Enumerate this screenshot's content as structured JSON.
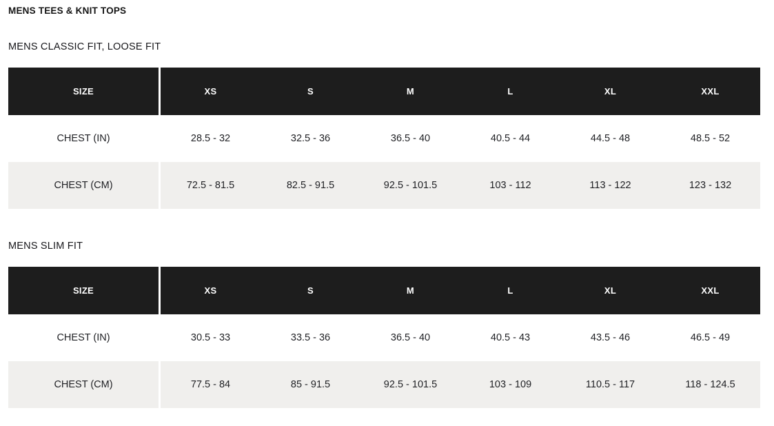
{
  "page": {
    "title": "MENS TEES & KNIT TOPS"
  },
  "colors": {
    "header_bg": "#1d1d1d",
    "header_text": "#ffffff",
    "row_alt_bg": "#f0efed",
    "body_text": "#1e1f23"
  },
  "tables": [
    {
      "subtitle": "MENS CLASSIC FIT, LOOSE FIT",
      "columns": [
        "SIZE",
        "XS",
        "S",
        "M",
        "L",
        "XL",
        "XXL"
      ],
      "rows": [
        {
          "label": "CHEST (IN)",
          "values": [
            "28.5 - 32",
            "32.5 - 36",
            "36.5 - 40",
            "40.5 - 44",
            "44.5 - 48",
            "48.5 - 52"
          ]
        },
        {
          "label": "CHEST (CM)",
          "values": [
            "72.5 - 81.5",
            "82.5 - 91.5",
            "92.5 - 101.5",
            "103 - 112",
            "113 - 122",
            "123 - 132"
          ]
        }
      ]
    },
    {
      "subtitle": "MENS SLIM FIT",
      "columns": [
        "SIZE",
        "XS",
        "S",
        "M",
        "L",
        "XL",
        "XXL"
      ],
      "rows": [
        {
          "label": "CHEST (IN)",
          "values": [
            "30.5 - 33",
            "33.5 - 36",
            "36.5 - 40",
            "40.5 - 43",
            "43.5 - 46",
            "46.5 - 49"
          ]
        },
        {
          "label": "CHEST (CM)",
          "values": [
            "77.5 - 84",
            "85 - 91.5",
            "92.5 - 101.5",
            "103 - 109",
            "110.5 - 117",
            "118 - 124.5"
          ]
        }
      ]
    }
  ]
}
